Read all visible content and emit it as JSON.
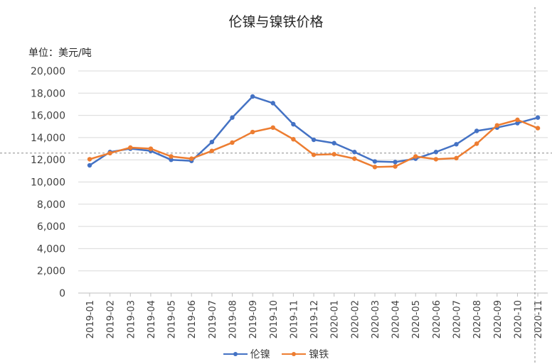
{
  "chart_data": {
    "type": "line",
    "title": "伦镍与镍铁价格",
    "unit_label": "单位：美元/吨",
    "categories": [
      "2019-01",
      "2019-02",
      "2019-03",
      "2019-04",
      "2019-05",
      "2019-06",
      "2019-07",
      "2019-08",
      "2019-09",
      "2019-10",
      "2019-11",
      "2019-12",
      "2020-01",
      "2020-02",
      "2020-03",
      "2020-04",
      "2020-05",
      "2020-06",
      "2020-07",
      "2020-08",
      "2020-09",
      "2020-10",
      "2020-11"
    ],
    "ylim": [
      0,
      20000
    ],
    "yticks": [
      0,
      2000,
      4000,
      6000,
      8000,
      10000,
      12000,
      14000,
      16000,
      18000,
      20000
    ],
    "ytick_labels": [
      "0",
      "2,000",
      "4,000",
      "6,000",
      "8,000",
      "10,000",
      "12,000",
      "14,000",
      "16,000",
      "18,000",
      "20,000"
    ],
    "grid": true,
    "legend_position": "bottom",
    "reference_line_y": 12600,
    "series": [
      {
        "name": "伦镍",
        "color": "#4472C4",
        "values": [
          11500,
          12700,
          13000,
          12800,
          12000,
          11900,
          13600,
          15800,
          17700,
          17100,
          15200,
          13800,
          13500,
          12700,
          11850,
          11800,
          12100,
          12700,
          13400,
          14600,
          14900,
          15300,
          15800
        ]
      },
      {
        "name": "镍铁",
        "color": "#ED7D31",
        "values": [
          12050,
          12600,
          13100,
          13000,
          12300,
          12100,
          12800,
          13550,
          14500,
          14900,
          13850,
          12450,
          12500,
          12100,
          11350,
          11400,
          12300,
          12050,
          12150,
          13450,
          15100,
          15600,
          14850
        ]
      }
    ]
  }
}
